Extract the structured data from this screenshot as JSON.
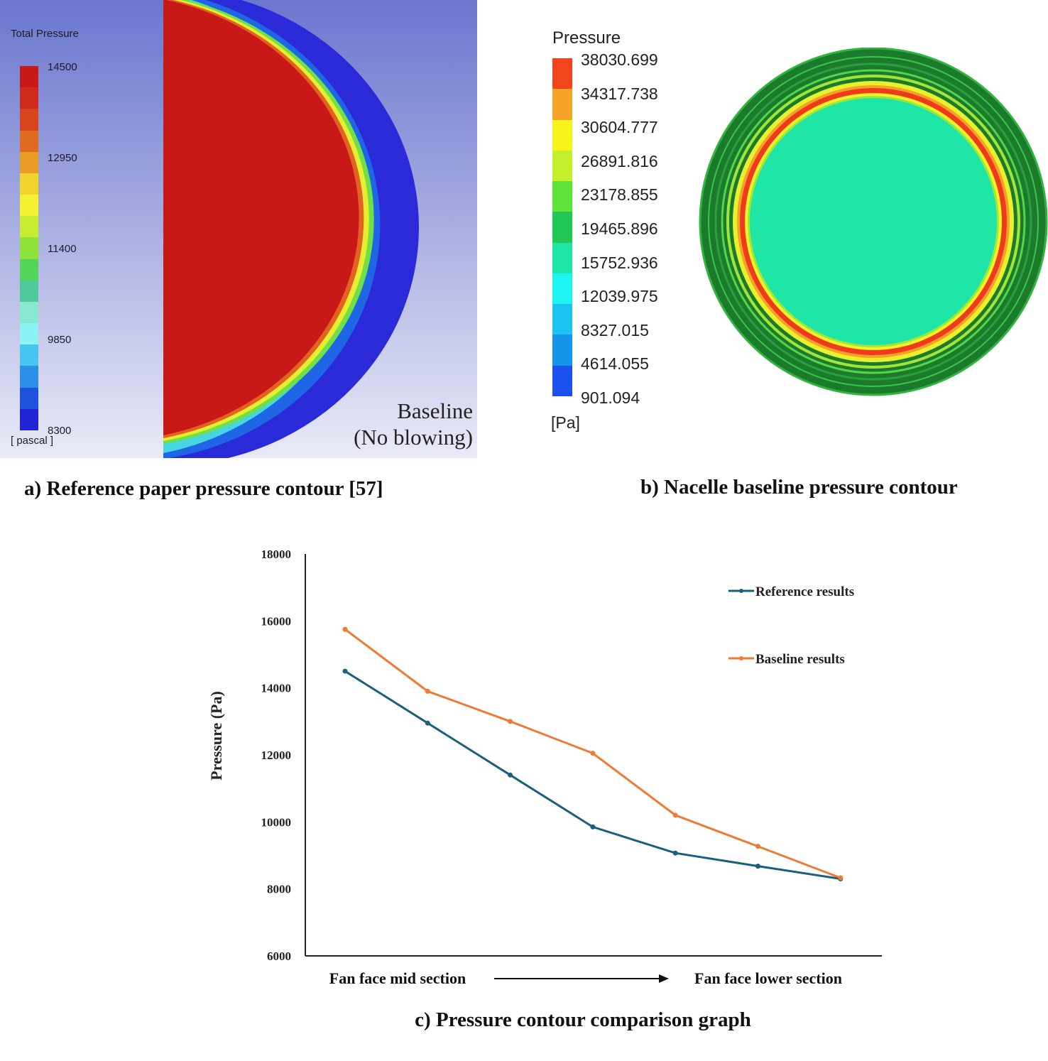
{
  "panel_a": {
    "legend_title": "Total Pressure",
    "legend_ticks": [
      "14500",
      "12950",
      "11400",
      "9850",
      "8300"
    ],
    "legend_unit": "[ pascal ]",
    "label_line1": "Baseline",
    "label_line2": "(No blowing)",
    "caption": "a) Reference paper pressure contour [57]",
    "colors": [
      "#c81818",
      "#cf2a1c",
      "#d8441d",
      "#e06a22",
      "#e99d26",
      "#f2d52c",
      "#f4f230",
      "#c8ec32",
      "#8fe23a",
      "#55d45a",
      "#4ec99a",
      "#88e8d0",
      "#8cf2f4",
      "#47c6ef",
      "#2b8fe8",
      "#1f52de",
      "#2222d6"
    ]
  },
  "panel_b": {
    "legend_title": "Pressure",
    "legend_ticks": [
      "38030.699",
      "34317.738",
      "30604.777",
      "26891.816",
      "23178.855",
      "19465.896",
      "15752.936",
      "12039.975",
      "8327.015",
      "4614.055",
      "901.094"
    ],
    "legend_unit": "[Pa]",
    "caption": "b) Nacelle baseline pressure contour",
    "colors": [
      "#f1461d",
      "#f5a429",
      "#f8f31a",
      "#c3ef2b",
      "#5ee33a",
      "#22c656",
      "#1fe6a6",
      "#1ef4f2",
      "#1cc2f0",
      "#1594ec",
      "#1b4fee"
    ]
  },
  "chart_data": {
    "type": "line",
    "title": "c) Pressure contour comparison graph",
    "ylabel": "Pressure (Pa)",
    "xlabel_start": "Fan face mid section",
    "xlabel_end": "Fan face lower section",
    "ylim": [
      6000,
      18000
    ],
    "yticks": [
      "18000",
      "16000",
      "14000",
      "12000",
      "10000",
      "8000",
      "6000"
    ],
    "x": [
      1,
      2,
      3,
      4,
      5,
      6,
      7
    ],
    "series": [
      {
        "name": "Reference results",
        "color": "#1b5f7f",
        "values": [
          14500,
          12950,
          11400,
          9850,
          9070,
          8680,
          8300
        ]
      },
      {
        "name": "Baseline results",
        "color": "#ee7a33",
        "values": [
          15750,
          13900,
          13000,
          12050,
          10200,
          9270,
          8330
        ]
      }
    ]
  }
}
